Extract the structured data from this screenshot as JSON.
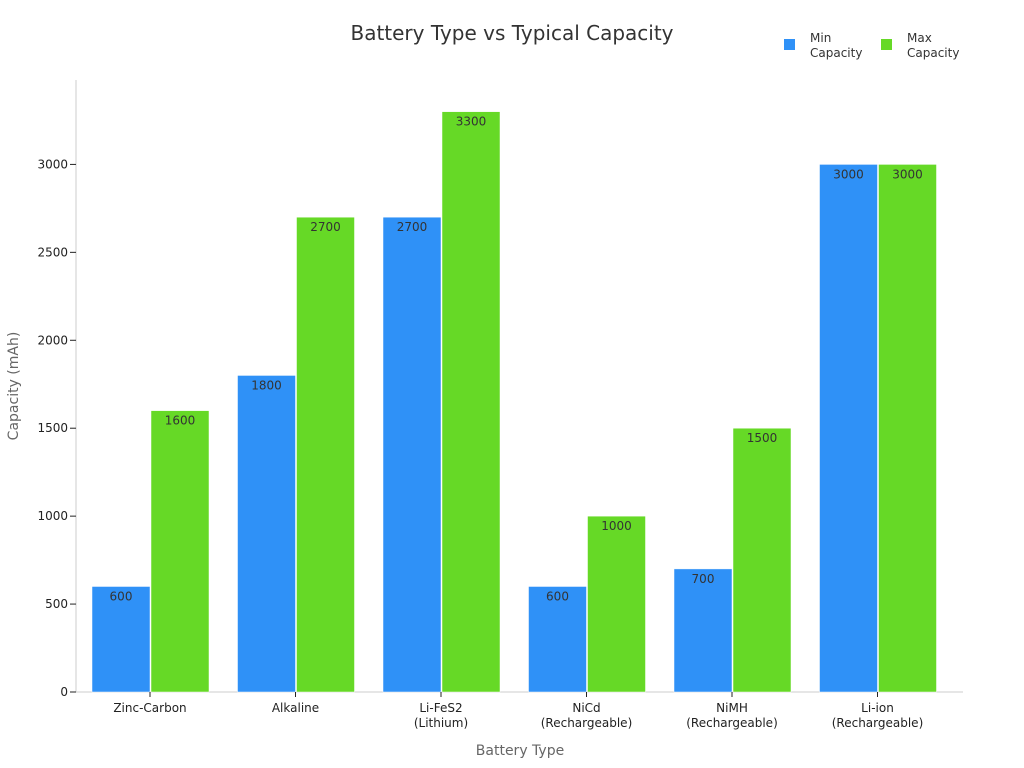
{
  "chart_data": {
    "type": "bar",
    "title": "Battery Type vs Typical Capacity",
    "xlabel": "Battery Type",
    "ylabel": "Capacity (mAh)",
    "ylim": [
      0,
      3480
    ],
    "yticks": [
      0,
      500,
      1000,
      1500,
      2000,
      2500,
      3000
    ],
    "grid": false,
    "legend_position": "top-right",
    "categories": [
      [
        "Zinc-Carbon"
      ],
      [
        "Alkaline"
      ],
      [
        "Li-FeS2",
        "(Lithium)"
      ],
      [
        "NiCd",
        "(Rechargeable)"
      ],
      [
        "NiMH",
        "(Rechargeable)"
      ],
      [
        "Li-ion",
        "(Rechargeable)"
      ]
    ],
    "series": [
      {
        "name": [
          "Min",
          "Capacity"
        ],
        "color": "#2f91f7",
        "values": [
          600,
          1800,
          2700,
          600,
          700,
          3000
        ]
      },
      {
        "name": [
          "Max",
          "Capacity"
        ],
        "color": "#66d926",
        "values": [
          1600,
          2700,
          3300,
          1000,
          1500,
          3000
        ]
      }
    ]
  }
}
